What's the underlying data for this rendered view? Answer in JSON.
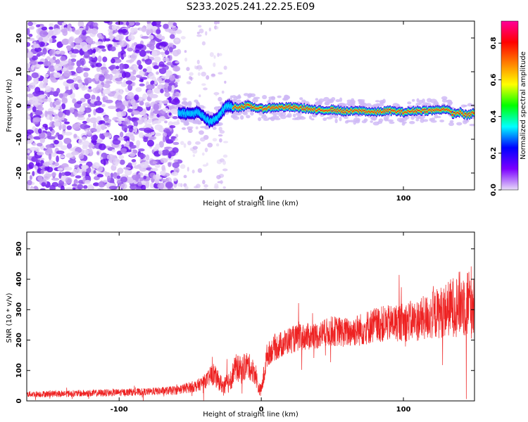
{
  "title": "S233.2025.241.22.25.E09",
  "chart_data": [
    {
      "type": "heatmap",
      "name": "spectrogram",
      "xlabel": "Height of straight line (km)",
      "ylabel": "Frequency (Hz)",
      "xlim": [
        -165,
        150
      ],
      "ylim": [
        -25,
        25
      ],
      "xticks": [
        -100,
        0,
        100
      ],
      "xtick_labels": [
        "-100",
        "0",
        "100"
      ],
      "yticks": [
        -20,
        -10,
        0,
        10,
        20
      ],
      "ytick_labels": [
        "-20",
        "-10",
        "0",
        "10",
        "20"
      ],
      "carrier_track": {
        "x": [
          -58,
          -50,
          -45,
          -40,
          -36,
          -32,
          -28,
          -24,
          -20,
          -15,
          -10,
          -5,
          0,
          10,
          20,
          30,
          40,
          50,
          60,
          70,
          80,
          90,
          100,
          110,
          120,
          130,
          135,
          140,
          145,
          150
        ],
        "y": [
          -2,
          -2.5,
          -2,
          -3.5,
          -5,
          -4,
          -2,
          0,
          -0.5,
          -0.5,
          0,
          -0.5,
          -1,
          -0.5,
          -0.5,
          -0.8,
          -1.5,
          -1.2,
          -1.8,
          -1.5,
          -2,
          -1.5,
          -2,
          -1.5,
          -1.5,
          -1,
          -2.5,
          -2,
          -3,
          -2
        ]
      },
      "colorbar": {
        "label": "Normalized spectral amplitude",
        "range": [
          0,
          0.92
        ],
        "ticks": [
          0.0,
          0.2,
          0.4,
          0.6,
          0.8
        ],
        "tick_labels": [
          "0.0",
          "0.2",
          "0.4",
          "0.6",
          "0.8"
        ],
        "colors": [
          "#e8dcf8",
          "#7b00ff",
          "#0000ff",
          "#00ffff",
          "#00ff00",
          "#ffff00",
          "#ff8000",
          "#ff0000",
          "#ff0099"
        ]
      }
    },
    {
      "type": "line",
      "name": "snr",
      "xlabel": "Height of straight line (km)",
      "ylabel": "SNR (10 * v/v)",
      "xlim": [
        -165,
        150
      ],
      "ylim": [
        0,
        555
      ],
      "xticks": [
        -100,
        0,
        100
      ],
      "xtick_labels": [
        "-100",
        "0",
        "100"
      ],
      "yticks": [
        0,
        100,
        200,
        300,
        400,
        500
      ],
      "ytick_labels": [
        "0",
        "100",
        "200",
        "300",
        "400",
        "500"
      ],
      "series": [
        {
          "name": "SNR",
          "color": "#ee2222",
          "x": [
            -165,
            -120,
            -80,
            -60,
            -45,
            -38,
            -34,
            -30,
            -26,
            -22,
            -18,
            -14,
            -10,
            -6,
            -4,
            -2,
            0,
            2,
            4,
            8,
            12,
            16,
            20,
            30,
            40,
            50,
            60,
            70,
            80,
            90,
            100,
            110,
            120,
            130,
            140,
            150
          ],
          "y": [
            22,
            25,
            30,
            35,
            50,
            70,
            90,
            65,
            45,
            70,
            110,
            100,
            120,
            100,
            90,
            40,
            35,
            90,
            150,
            170,
            180,
            190,
            200,
            210,
            215,
            230,
            225,
            235,
            250,
            255,
            260,
            265,
            280,
            300,
            320,
            330
          ],
          "noise": [
            10,
            12,
            12,
            15,
            20,
            25,
            40,
            30,
            30,
            40,
            45,
            45,
            45,
            40,
            40,
            20,
            20,
            40,
            40,
            40,
            45,
            45,
            45,
            45,
            45,
            50,
            50,
            55,
            60,
            60,
            65,
            70,
            80,
            90,
            110,
            130
          ]
        }
      ]
    }
  ]
}
